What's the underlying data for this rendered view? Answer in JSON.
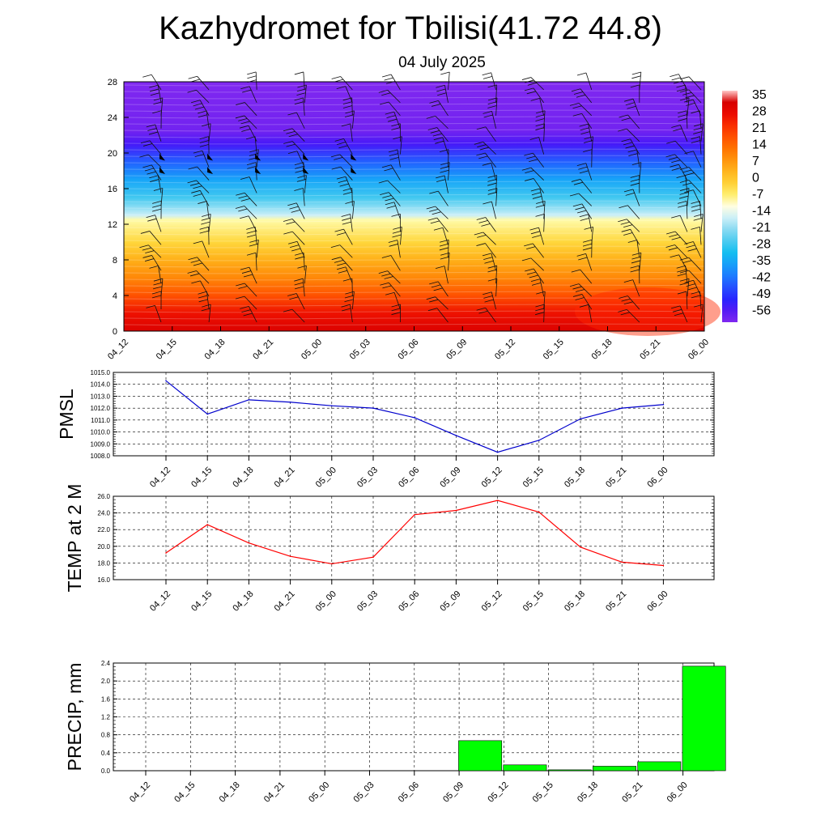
{
  "header": {
    "title": "Kazhydromet for Tbilisi(41.72 44.8)",
    "subtitle": "04 July 2025"
  },
  "chart_data": [
    {
      "type": "heatmap",
      "name": "upper-air cross-section",
      "x": [
        "04_12",
        "04_15",
        "04_18",
        "04_21",
        "05_00",
        "05_03",
        "05_06",
        "05_09",
        "05_12",
        "05_15",
        "05_18",
        "05_21",
        "06_00"
      ],
      "y_ticks": [
        "0",
        "4",
        "8",
        "12",
        "16",
        "20",
        "24",
        "28"
      ],
      "ylim": [
        0,
        28
      ],
      "profile": [
        [
          0,
          32
        ],
        [
          2,
          27
        ],
        [
          4,
          18
        ],
        [
          6,
          10
        ],
        [
          8,
          4
        ],
        [
          10,
          -3
        ],
        [
          12.5,
          -10
        ],
        [
          13,
          -17
        ],
        [
          15,
          -28
        ],
        [
          17,
          -36
        ],
        [
          19,
          -45
        ],
        [
          21,
          -56
        ],
        [
          22.5,
          -60
        ],
        [
          28,
          -62
        ]
      ],
      "colorbar": {
        "labels": [
          "35",
          "28",
          "21",
          "14",
          "7",
          "0",
          "-7",
          "-14",
          "-21",
          "-28",
          "-35",
          "-42",
          "-49",
          "-56"
        ],
        "range": [
          -62,
          38
        ]
      },
      "wind_barbs": true,
      "grid": false
    },
    {
      "type": "line",
      "ylabel": "PMSL",
      "categories": [
        "04_12",
        "04_15",
        "04_18",
        "04_21",
        "05_00",
        "05_03",
        "05_06",
        "05_09",
        "05_12",
        "05_15",
        "05_18",
        "05_21",
        "06_00"
      ],
      "values": [
        1014.3,
        1011.5,
        1012.7,
        1012.5,
        1012.2,
        1012.0,
        1011.2,
        1009.7,
        1008.3,
        1009.3,
        1011.1,
        1012.0,
        1012.3
      ],
      "ylim": [
        1008,
        1015
      ],
      "yticks": [
        "1008.0",
        "1009.0",
        "1010.0",
        "1011.0",
        "1012.0",
        "1013.0",
        "1014.0",
        "1015.0"
      ],
      "color": "#0000cc",
      "grid": true
    },
    {
      "type": "line",
      "ylabel": "TEMP at 2 M",
      "categories": [
        "04_12",
        "04_15",
        "04_18",
        "04_21",
        "05_00",
        "05_03",
        "05_06",
        "05_09",
        "05_12",
        "05_15",
        "05_18",
        "05_21",
        "06_00"
      ],
      "values": [
        19.2,
        22.6,
        20.4,
        18.8,
        17.9,
        18.7,
        23.8,
        24.3,
        25.5,
        24.1,
        19.9,
        18.1,
        17.7
      ],
      "ylim": [
        16,
        26
      ],
      "yticks": [
        "16.0",
        "18.0",
        "20.0",
        "22.0",
        "24.0",
        "26.0"
      ],
      "color": "#ff0000",
      "grid": true
    },
    {
      "type": "bar",
      "ylabel": "PRECIP, mm",
      "categories": [
        "04_12",
        "04_15",
        "04_18",
        "04_21",
        "05_00",
        "05_03",
        "05_06",
        "05_09",
        "05_12",
        "05_15",
        "05_18",
        "05_21",
        "06_00"
      ],
      "values": [
        0,
        0,
        0,
        0,
        0,
        0,
        0,
        0.67,
        0.13,
        0.02,
        0.1,
        0.2,
        2.33
      ],
      "ylim": [
        0,
        2.4
      ],
      "yticks": [
        "0.0",
        "0.4",
        "0.8",
        "1.2",
        "1.6",
        "2.0",
        "2.4"
      ],
      "color": "#00ff00",
      "grid": true
    }
  ]
}
